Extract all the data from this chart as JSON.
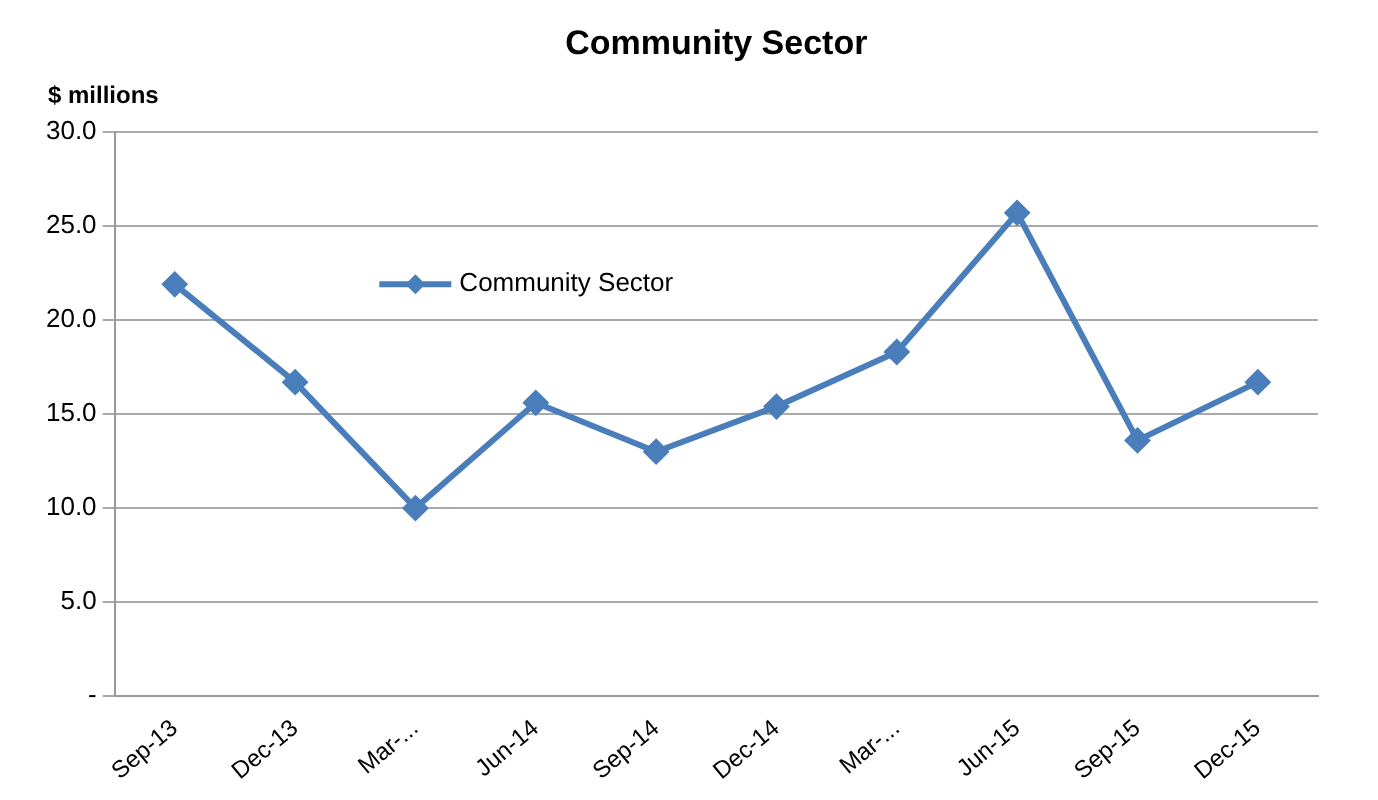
{
  "chart_data": {
    "type": "line",
    "title": "Community Sector",
    "ylabel": "$ millions",
    "categories": [
      "Sep-13",
      "Dec-13",
      "Mar-...",
      "Jun-14",
      "Sep-14",
      "Dec-14",
      "Mar-...",
      "Jun-15",
      "Sep-15",
      "Dec-15"
    ],
    "series": [
      {
        "name": "Community Sector",
        "color": "#4a7ebb",
        "values": [
          21.9,
          16.7,
          10.0,
          15.6,
          13.0,
          15.4,
          18.3,
          25.7,
          13.6,
          16.7
        ]
      }
    ],
    "ylim": [
      0,
      30
    ],
    "yticks": [
      {
        "value": 0,
        "label": "-"
      },
      {
        "value": 5,
        "label": "5.0"
      },
      {
        "value": 10,
        "label": "10.0"
      },
      {
        "value": 15,
        "label": "15.0"
      },
      {
        "value": 20,
        "label": "20.0"
      },
      {
        "value": 25,
        "label": "25.0"
      },
      {
        "value": 30,
        "label": "30.0"
      }
    ],
    "grid": "y",
    "legend": "top left",
    "marker": "diamond",
    "line_style": "solid"
  }
}
